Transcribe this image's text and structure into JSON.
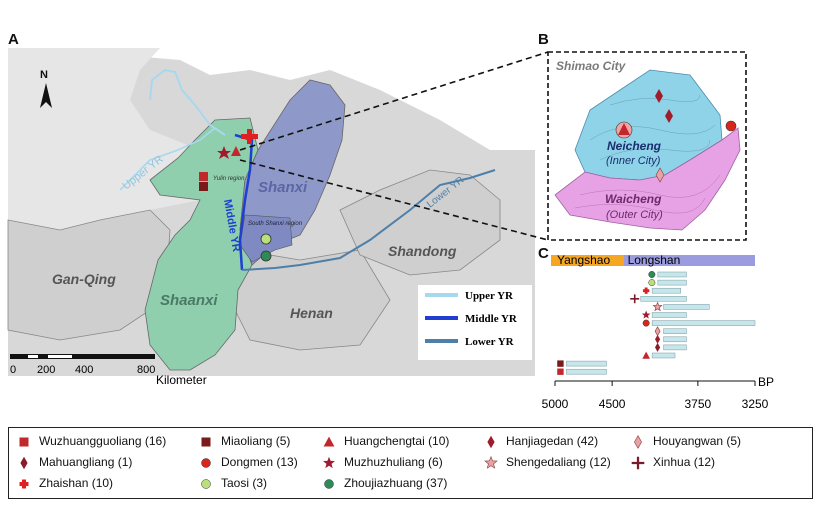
{
  "panels": {
    "a": "A",
    "b": "B",
    "c": "C"
  },
  "north": "N",
  "regions": {
    "gan_qing": "Gan-Qing",
    "shaanxi": "Shaanxi",
    "shanxi": "Shanxi",
    "henan": "Henan",
    "shandong": "Shandong",
    "yulin": "Yulin region",
    "south_shanxi": "South Shanxi region"
  },
  "rivers": {
    "upper": "Upper YR",
    "middle": "Middle YR",
    "lower": "Lower YR"
  },
  "river_legend": {
    "upper": "Upper YR",
    "middle": "Middle YR",
    "lower": "Lower YR"
  },
  "colors": {
    "upper": "#a8d8ee",
    "middle": "#1f3fd0",
    "lower": "#4e7fa8",
    "shaanxi": "#8fcfae",
    "shanxi": "#8f99c9",
    "inner_city": "#8fd3e8",
    "outer_city": "#e7a2e6",
    "yangshao": "#f5a623",
    "longshan": "#9b9be0"
  },
  "scale": {
    "ticks": [
      "0",
      "200",
      "400",
      "800"
    ],
    "unit": "Kilometer"
  },
  "inset": {
    "title": "Shimao City",
    "inner": "Neicheng",
    "inner_en": "(Inner City)",
    "outer": "Waicheng",
    "outer_en": "(Outer City)"
  },
  "chart_data": {
    "type": "bar",
    "periods": [
      "Yangshao",
      "Longshan"
    ],
    "xlabel": "BP",
    "xticks": [
      "5000",
      "4500",
      "3750",
      "3250"
    ],
    "xlim": [
      5000,
      3250
    ],
    "bars": [
      {
        "site": "Zhoujiazhuang",
        "start": 4100,
        "end": 3850
      },
      {
        "site": "Taosi",
        "start": 4100,
        "end": 3850
      },
      {
        "site": "Zhaishan",
        "start": 4150,
        "end": 3900
      },
      {
        "site": "Xinhua",
        "start": 4250,
        "end": 3850
      },
      {
        "site": "Shengedaliang",
        "start": 4050,
        "end": 3650
      },
      {
        "site": "Muzhuzhuliang",
        "start": 4150,
        "end": 3850
      },
      {
        "site": "Dongmen",
        "start": 4150,
        "end": 3250
      },
      {
        "site": "Houyangwan",
        "start": 4050,
        "end": 3850
      },
      {
        "site": "Hanjiagedan",
        "start": 4050,
        "end": 3850
      },
      {
        "site": "Mahuangliang",
        "start": 4050,
        "end": 3850
      },
      {
        "site": "Huangchengtai",
        "start": 4150,
        "end": 3950
      },
      {
        "site": "Miaoliang",
        "start": 4900,
        "end": 4550
      },
      {
        "site": "Wuzhuangguoliang",
        "start": 4900,
        "end": 4550
      }
    ]
  },
  "legend": [
    {
      "label": "Wuzhuangguoliang (16)",
      "symbol": "square",
      "color": "#c0282d"
    },
    {
      "label": "Miaoliang (5)",
      "symbol": "square",
      "color": "#7a1a1a"
    },
    {
      "label": "Huangchengtai (10)",
      "symbol": "triangle",
      "color": "#c0282d"
    },
    {
      "label": "Hanjiagedan (42)",
      "symbol": "diamond",
      "color": "#a01c2c"
    },
    {
      "label": "Houyangwan (5)",
      "symbol": "diamond-open",
      "color": "#e7a2a6"
    },
    {
      "label": "Mahuangliang (1)",
      "symbol": "diamond",
      "color": "#8a1c2c"
    },
    {
      "label": "Dongmen (13)",
      "symbol": "circle",
      "color": "#d9261c"
    },
    {
      "label": "Muzhuzhuliang (6)",
      "symbol": "star",
      "color": "#a01c2c"
    },
    {
      "label": "Shengedaliang (12)",
      "symbol": "star-open",
      "color": "#e7a2a6"
    },
    {
      "label": "Xinhua (12)",
      "symbol": "cross4",
      "color": "#7a1a2a"
    },
    {
      "label": "Zhaishan (10)",
      "symbol": "plus",
      "color": "#e02020"
    },
    {
      "label": "Taosi (3)",
      "symbol": "circle",
      "color": "#b9e07a"
    },
    {
      "label": "Zhoujiazhuang (37)",
      "symbol": "circle",
      "color": "#2e8b57"
    }
  ]
}
